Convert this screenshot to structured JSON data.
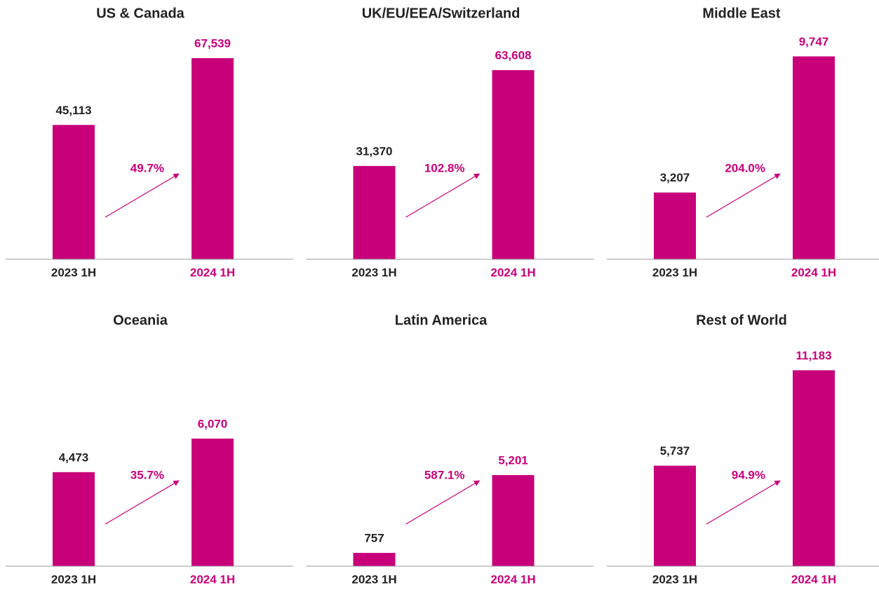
{
  "chart_data": [
    {
      "type": "bar",
      "title": "US & Canada",
      "categories": [
        "2023 1H",
        "2024 1H"
      ],
      "values": [
        45113,
        67539
      ],
      "value_labels": [
        "45,113",
        "67,539"
      ],
      "annotation": "49.7%",
      "ylim": [
        0,
        70600
      ],
      "color": "#c8007a"
    },
    {
      "type": "bar",
      "title": "UK/EU/EEA/Switzerland",
      "categories": [
        "2023 1H",
        "2024 1H"
      ],
      "values": [
        31370,
        63608
      ],
      "value_labels": [
        "31,370",
        "63,608"
      ],
      "annotation": "102.8%",
      "ylim": [
        0,
        70700
      ],
      "color": "#c8007a"
    },
    {
      "type": "bar",
      "title": "Middle East",
      "categories": [
        "2023 1H",
        "2024 1H"
      ],
      "values": [
        3207,
        9747
      ],
      "value_labels": [
        "3,207",
        "9,747"
      ],
      "annotation": "204.0%",
      "ylim": [
        0,
        10100
      ],
      "color": "#c8007a"
    },
    {
      "type": "bar",
      "title": "Oceania",
      "categories": [
        "2023 1H",
        "2024 1H"
      ],
      "values": [
        4473,
        6070
      ],
      "value_labels": [
        "4,473",
        "6,070"
      ],
      "annotation": "35.7%",
      "ylim": [
        0,
        10000
      ],
      "color": "#c8007a"
    },
    {
      "type": "bar",
      "title": "Latin America",
      "categories": [
        "2023 1H",
        "2024 1H"
      ],
      "values": [
        757,
        5201
      ],
      "value_labels": [
        "757",
        "5,201"
      ],
      "annotation": "587.1%",
      "ylim": [
        0,
        12000
      ],
      "color": "#c8007a"
    },
    {
      "type": "bar",
      "title": "Rest of World",
      "categories": [
        "2023 1H",
        "2024 1H"
      ],
      "values": [
        5737,
        11183
      ],
      "value_labels": [
        "5,737",
        "11,183"
      ],
      "annotation": "94.9%",
      "ylim": [
        0,
        12000
      ],
      "color": "#c8007a"
    }
  ]
}
